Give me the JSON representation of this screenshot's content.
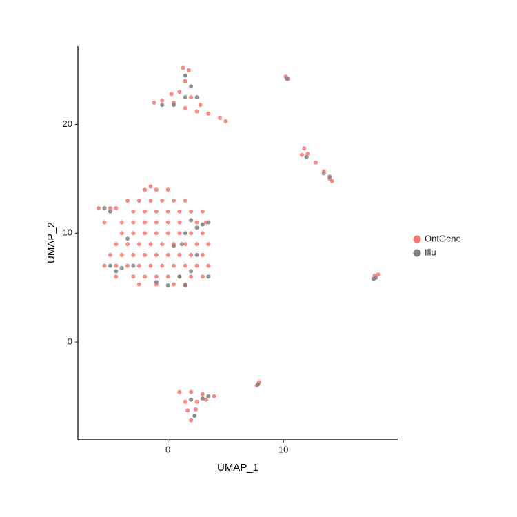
{
  "chart_data": {
    "type": "scatter",
    "x_label": "UMAP_1",
    "y_label": "UMAP_2",
    "xlim": [
      -7.8,
      19.9
    ],
    "ylim": [
      -9,
      27.2
    ],
    "xticks": [
      0,
      10
    ],
    "yticks": [
      0,
      10,
      20
    ],
    "grid": false,
    "legend": "right",
    "series": [
      {
        "name": "OntGene",
        "color": "#f8766d",
        "x": [
          -2,
          -1,
          0,
          -1.5,
          -3.5,
          -2.5,
          -1.5,
          -0.5,
          0.5,
          1.5,
          -6,
          -5,
          -4.5,
          -3,
          -2,
          -1,
          0,
          1,
          2,
          3,
          -5.5,
          -4,
          -3,
          -2,
          -1,
          0,
          1,
          2.5,
          3.3,
          -4,
          -3,
          -2,
          -1,
          0,
          1,
          2,
          3,
          -4.5,
          -3.5,
          -2.5,
          -1.5,
          -0.5,
          0.5,
          1.5,
          2.5,
          3.5,
          -5,
          -4,
          -3,
          -2,
          -1,
          0,
          1,
          2,
          3,
          -5.5,
          -4.5,
          -3.5,
          -2.5,
          -1.5,
          -0.5,
          0.5,
          1.5,
          2.5,
          3.5,
          -4.5,
          -3,
          -2,
          -1,
          0,
          1,
          2,
          3,
          -2.5,
          -1,
          0.5,
          1.5,
          -1.2,
          -0.5,
          0.5,
          1.5,
          2.5,
          1,
          2,
          1.5,
          1.8,
          1.3,
          0.3,
          2.8,
          3.5,
          4.5,
          5,
          10.2,
          10.4,
          11.8,
          12.1,
          11.6,
          12.8,
          13.5,
          14,
          14.2,
          17.9,
          18.2,
          1,
          2,
          3,
          4,
          1.5,
          2.5,
          3.3,
          1.7,
          2.4,
          2,
          7.9,
          7.7
        ],
        "values": [
          14,
          14,
          14,
          14.3,
          13,
          13,
          13,
          13,
          13,
          13,
          12.3,
          12.3,
          12.3,
          12,
          12,
          12,
          12,
          12,
          12,
          12,
          11,
          11,
          11,
          11,
          11,
          11,
          11,
          11,
          11,
          10,
          10,
          10,
          10,
          10,
          10,
          10,
          10,
          9,
          9,
          9,
          9,
          9,
          9,
          9,
          9,
          9,
          8,
          8,
          8,
          8,
          8,
          8,
          8,
          8,
          8,
          7,
          7,
          7,
          7,
          7,
          7,
          7,
          7,
          7,
          7,
          6,
          6,
          6,
          6,
          6,
          6,
          6,
          6,
          5.3,
          5.3,
          5.3,
          5.3,
          22,
          22.2,
          22,
          21.5,
          21.2,
          23,
          22.5,
          24,
          25,
          25.2,
          22.8,
          21.8,
          21,
          20.6,
          20.3,
          24.4,
          24.2,
          17.8,
          17.3,
          17.2,
          16.5,
          15.7,
          15,
          14.8,
          6.1,
          6.2,
          -4.6,
          -4.6,
          -4.8,
          -5,
          -5.5,
          -5.5,
          -5.3,
          -6.3,
          -6.2,
          -7.2,
          -3.7,
          -4
        ]
      },
      {
        "name": "Illu",
        "color": "#7f7f7f",
        "x": [
          -4.5,
          -5,
          -4,
          1,
          1.5,
          2,
          2.5,
          1.2,
          0.5,
          1.5,
          2.5,
          3.5,
          3,
          2,
          -5.5,
          -5,
          -3,
          -1,
          0,
          -3.5,
          3.5,
          0.5,
          1.5,
          2,
          2.5,
          -0.5,
          1.5,
          12,
          13.5,
          14,
          18,
          17.8,
          3,
          3.5,
          2,
          2.3,
          10.3,
          7.8
        ],
        "values": [
          6.5,
          7,
          6.8,
          6,
          5.2,
          6.5,
          8,
          9,
          8.8,
          10,
          10.5,
          11,
          10.8,
          11.2,
          12.3,
          12,
          7,
          5.5,
          5.2,
          9.5,
          6,
          21.8,
          24.5,
          23.5,
          22.5,
          21.8,
          22.5,
          17,
          15.5,
          15.2,
          5.9,
          5.8,
          -5.2,
          -5,
          -5.3,
          -6.8,
          24.2,
          -3.9
        ]
      }
    ]
  }
}
